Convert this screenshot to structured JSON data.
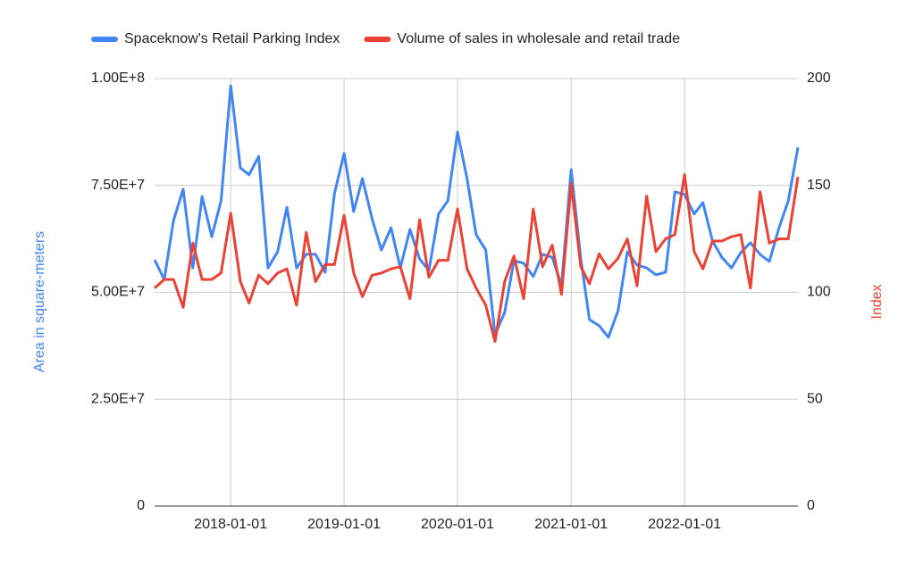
{
  "chart_data": {
    "type": "line",
    "x": [
      "2017-05-01",
      "2017-06-01",
      "2017-07-01",
      "2017-08-01",
      "2017-09-01",
      "2017-10-01",
      "2017-11-01",
      "2017-12-01",
      "2018-01-01",
      "2018-02-01",
      "2018-03-01",
      "2018-04-01",
      "2018-05-01",
      "2018-06-01",
      "2018-07-01",
      "2018-08-01",
      "2018-09-01",
      "2018-10-01",
      "2018-11-01",
      "2018-12-01",
      "2019-01-01",
      "2019-02-01",
      "2019-03-01",
      "2019-04-01",
      "2019-05-01",
      "2019-06-01",
      "2019-07-01",
      "2019-08-01",
      "2019-09-01",
      "2019-10-01",
      "2019-11-01",
      "2019-12-01",
      "2020-01-01",
      "2020-02-01",
      "2020-03-01",
      "2020-04-01",
      "2020-05-01",
      "2020-06-01",
      "2020-07-01",
      "2020-08-01",
      "2020-09-01",
      "2020-10-01",
      "2020-11-01",
      "2020-12-01",
      "2021-01-01",
      "2021-02-01",
      "2021-03-01",
      "2021-04-01",
      "2021-05-01",
      "2021-06-01",
      "2021-07-01",
      "2021-08-01",
      "2021-09-01",
      "2021-10-01",
      "2021-11-01",
      "2021-12-01",
      "2022-01-01",
      "2022-02-01",
      "2022-03-01",
      "2022-04-01",
      "2022-05-01",
      "2022-06-01",
      "2022-07-01",
      "2022-08-01",
      "2022-09-01",
      "2022-10-01",
      "2022-11-01",
      "2022-12-01",
      "2023-01-01"
    ],
    "series": [
      {
        "name": "Spaceknow's Retail Parking Index",
        "color": "#4285f4",
        "axis": "y",
        "values": [
          57600000,
          53000000,
          66800000,
          74100000,
          55700000,
          72400000,
          63000000,
          71400000,
          98300000,
          79100000,
          77500000,
          81800000,
          55700000,
          59500000,
          69900000,
          55700000,
          58900000,
          58900000,
          54700000,
          73100000,
          82500000,
          68900000,
          76600000,
          67200000,
          59900000,
          65100000,
          55700000,
          64700000,
          57800000,
          55100000,
          68300000,
          71400000,
          87500000,
          76600000,
          63500000,
          59900000,
          40100000,
          45300000,
          57400000,
          56800000,
          53700000,
          58900000,
          58200000,
          51600000,
          78700000,
          57800000,
          43600000,
          42200000,
          39500000,
          45700000,
          59500000,
          56400000,
          55700000,
          54100000,
          54700000,
          73500000,
          72900000,
          68300000,
          71000000,
          62000000,
          58200000,
          55700000,
          59300000,
          61600000,
          58900000,
          57200000,
          65100000,
          71400000,
          83900000
        ]
      },
      {
        "name": "Volume of sales in wholesale and retail trade",
        "color": "#ea4335",
        "axis": "y2",
        "values": [
          102,
          106,
          106,
          93,
          123,
          106,
          106,
          109,
          137,
          105,
          95,
          108,
          104,
          109,
          111,
          94,
          128,
          105,
          113,
          113,
          136,
          109,
          98,
          108,
          109,
          111,
          112,
          97,
          134,
          107,
          115,
          115,
          139,
          111,
          102,
          94,
          77,
          105,
          117,
          97,
          139,
          112,
          122,
          99,
          151,
          112,
          104,
          118,
          111,
          116,
          125,
          103,
          145,
          119,
          125,
          127,
          155,
          119,
          111,
          124,
          124,
          126,
          127,
          102,
          147,
          123,
          125,
          125,
          154
        ]
      }
    ],
    "xlim": [
      "2017-05-01",
      "2023-01-01"
    ],
    "xticks": [
      "2018-01-01",
      "2019-01-01",
      "2020-01-01",
      "2021-01-01",
      "2022-01-01"
    ],
    "ylim": [
      0,
      100000000
    ],
    "yticks": [
      0,
      {
        "value": 25000000,
        "label": "2.50E+7"
      },
      {
        "value": 50000000,
        "label": "5.00E+7"
      },
      {
        "value": 75000000,
        "label": "7.50E+7"
      },
      {
        "value": 100000000,
        "label": "1.00E+8"
      }
    ],
    "y2lim": [
      0,
      200
    ],
    "y2ticks": [
      0,
      50,
      100,
      150,
      200
    ],
    "ylabel": "Area in square-meters",
    "y2label": "Index",
    "grid": true,
    "legend": "top"
  }
}
